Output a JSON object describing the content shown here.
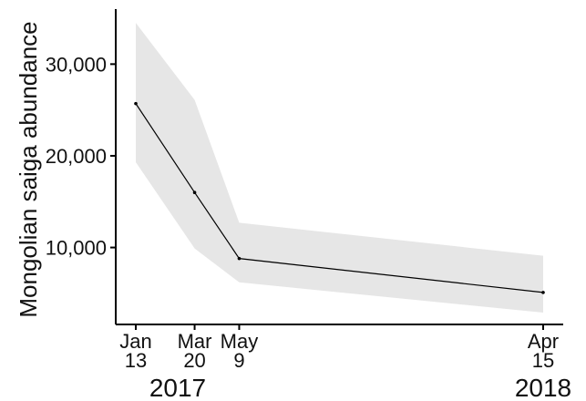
{
  "chart_data": {
    "type": "line",
    "ylabel": "Mongolian saiga abundance",
    "x_dates": [
      "2017-01-13",
      "2017-03-20",
      "2017-05-09",
      "2018-04-15"
    ],
    "x_tick_labels": [
      {
        "month": "Jan",
        "day": "13"
      },
      {
        "month": "Mar",
        "day": "20"
      },
      {
        "month": "May",
        "day": "9"
      },
      {
        "month": "Apr",
        "day": "15"
      }
    ],
    "year_labels": [
      {
        "label": "2017",
        "date": "2017-03-01"
      },
      {
        "label": "2018",
        "date": "2018-04-15"
      }
    ],
    "series": [
      {
        "values": [
          25700,
          16000,
          8800,
          5100
        ],
        "lower": [
          19300,
          9900,
          6200,
          2900
        ],
        "upper": [
          34500,
          26100,
          12700,
          9100
        ]
      }
    ],
    "ylim": [
      3000,
      36000
    ],
    "yticks": [
      10000,
      20000,
      30000
    ],
    "ytick_labels": [
      "10,000",
      "20,000",
      "30,000"
    ],
    "grid": false,
    "colors": {
      "line": "#000000",
      "band": "#e6e6e6",
      "axis": "#000000",
      "text": "#111111"
    }
  }
}
